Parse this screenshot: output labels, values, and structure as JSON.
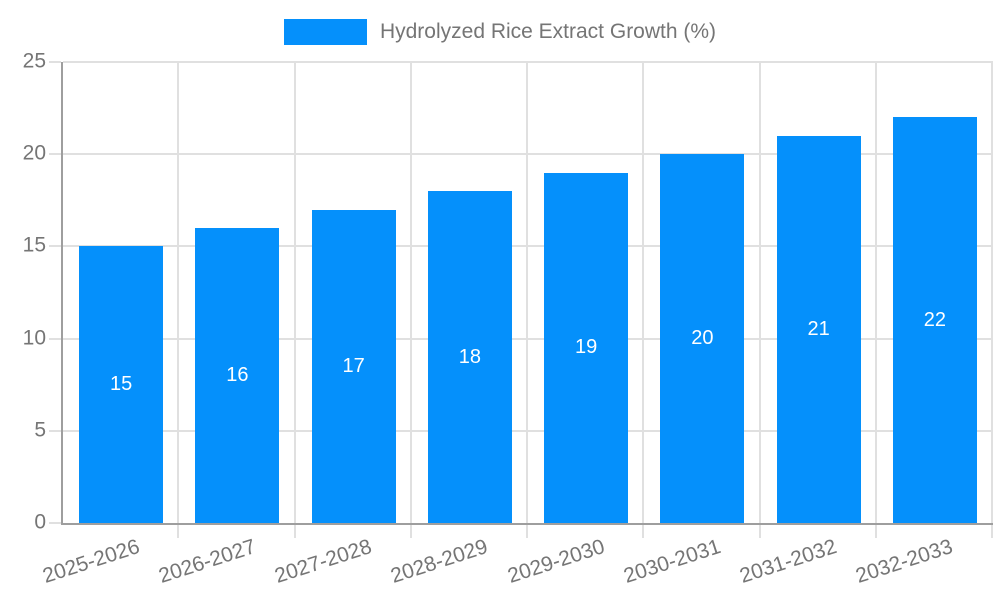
{
  "legend": {
    "label": "Hydrolyzed Rice Extract Growth (%)"
  },
  "colors": {
    "bar": "#0590fb",
    "grid": "#e0e0e0",
    "axis": "#9e9e9e",
    "tick_text": "#757575",
    "bar_label_text": "#ffffff"
  },
  "chart_data": {
    "type": "bar",
    "title": "",
    "categories": [
      "2025-2026",
      "2026-2027",
      "2027-2028",
      "2028-2029",
      "2029-2030",
      "2030-2031",
      "2031-2032",
      "2032-2033"
    ],
    "values": [
      15,
      16,
      17,
      18,
      19,
      20,
      21,
      22
    ],
    "series_name": "Hydrolyzed Rice Extract Growth (%)",
    "xlabel": "",
    "ylabel": "",
    "ylim": [
      0,
      25
    ],
    "yticks": [
      0,
      5,
      10,
      15,
      20,
      25
    ],
    "grid": true,
    "legend_position": "top-center",
    "bar_value_labels": true,
    "bar_value_label_position": "center",
    "x_tick_rotation_deg": 18
  }
}
